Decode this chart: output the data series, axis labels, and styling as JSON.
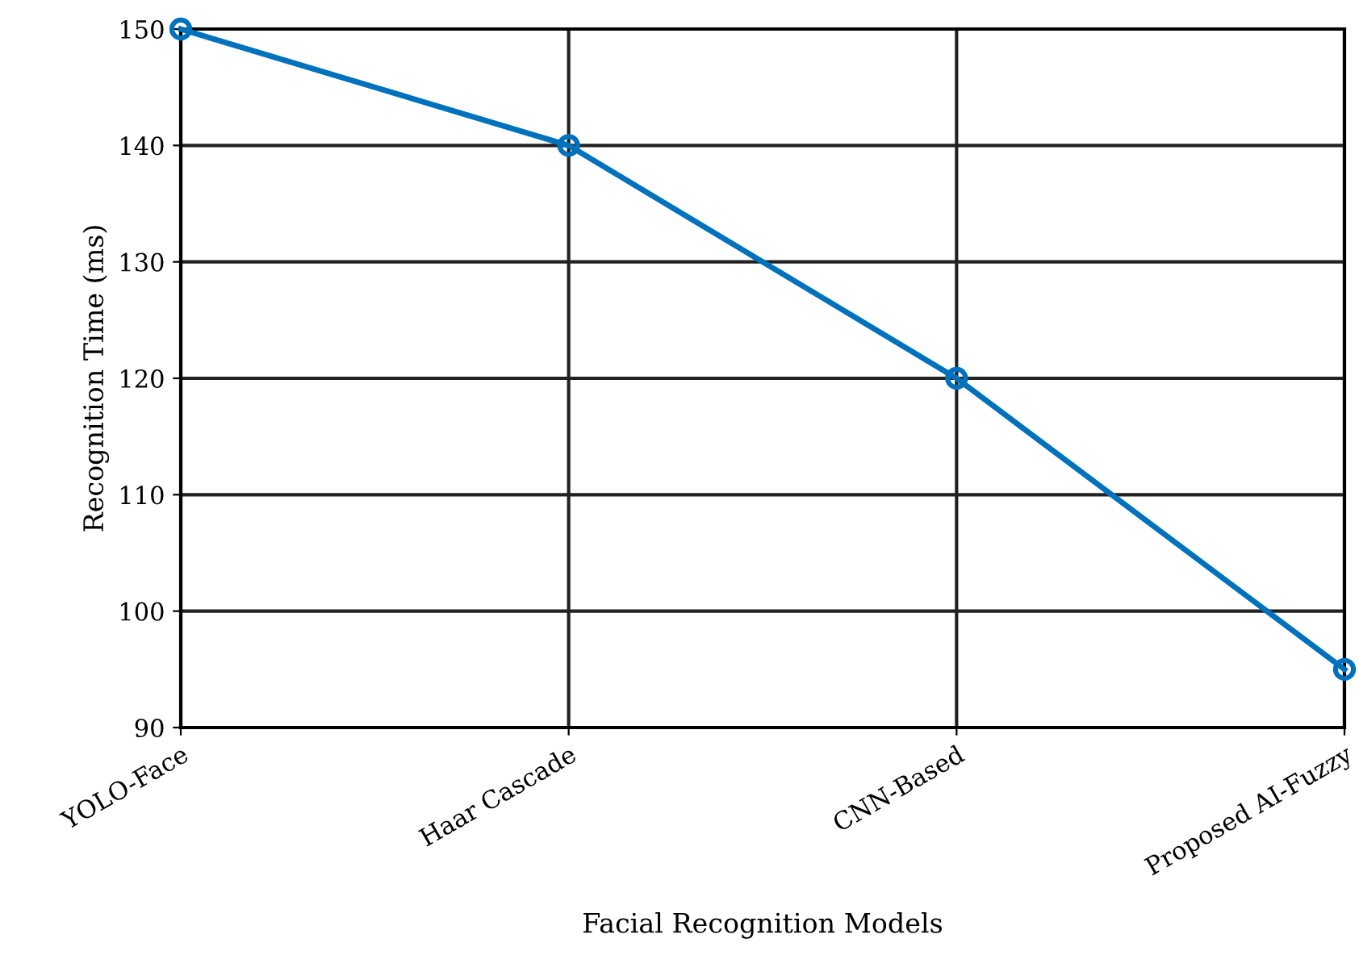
{
  "chart_data": {
    "type": "line",
    "xlabel": "Facial Recognition Models",
    "ylabel": "Recognition Time (ms)",
    "categories": [
      "YOLO-Face",
      "Haar Cascade",
      "CNN-Based",
      "Proposed AI-Fuzzy"
    ],
    "series": [
      {
        "color": "#0072bd",
        "values": [
          150,
          140,
          120,
          95
        ]
      }
    ],
    "ylim": [
      90,
      150
    ],
    "yticks": [
      90,
      100,
      110,
      120,
      130,
      140,
      150
    ],
    "grid": true,
    "marker": "circle",
    "line_style": "solid"
  }
}
